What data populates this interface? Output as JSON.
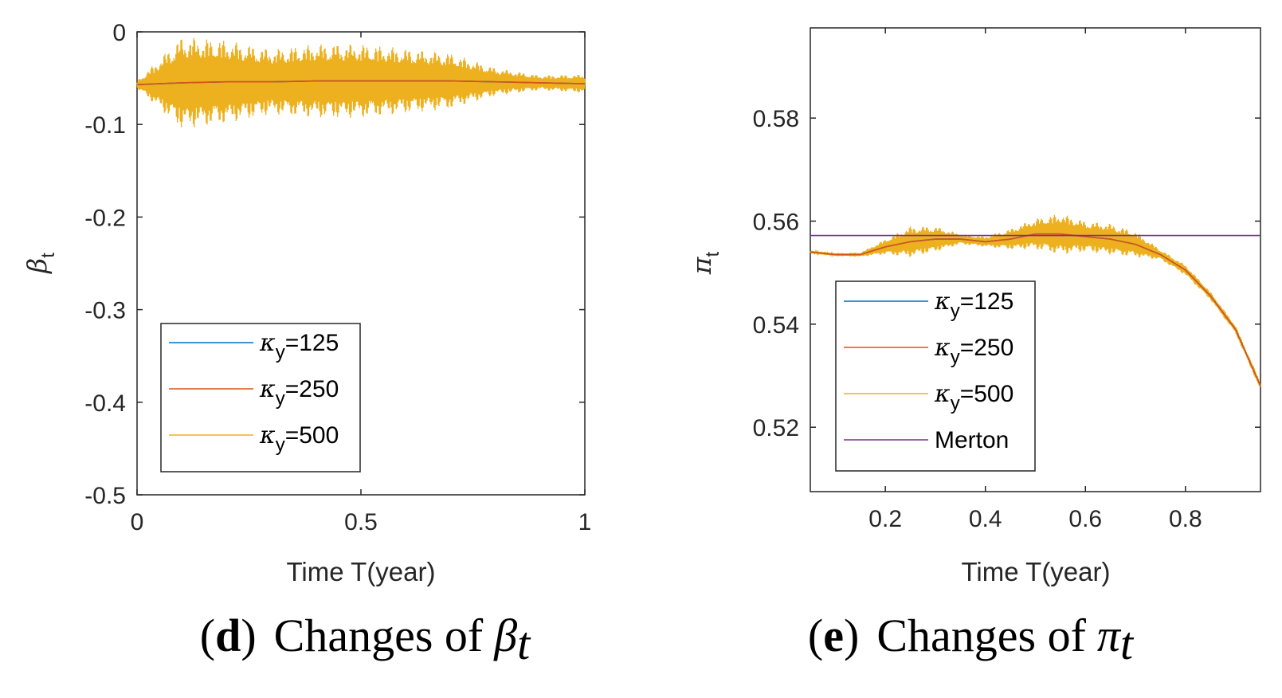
{
  "chart_data": [
    {
      "type": "line",
      "panel_letter": "d",
      "caption_text": "Changes of",
      "caption_symbol": "β",
      "caption_sub": "t",
      "ylabel_symbol": "β",
      "ylabel_sub": "t",
      "xlabel": "Time T(year)",
      "xlim": [
        0,
        1
      ],
      "ylim": [
        -0.5,
        0
      ],
      "xticks": [
        0,
        0.5,
        1
      ],
      "xtick_labels": [
        "0",
        "0.5",
        "1"
      ],
      "yticks": [
        0,
        -0.1,
        -0.2,
        -0.3,
        -0.4,
        -0.5
      ],
      "ytick_labels": [
        "0",
        "-0.1",
        "-0.2",
        "-0.3",
        "-0.4",
        "-0.5"
      ],
      "legend_location": "lower-left",
      "series": [
        {
          "name": "κy=125",
          "label_symbol": "κ",
          "label_sub": "y",
          "label_value": "=125",
          "color": "#0072BD",
          "x": [
            0,
            0.1,
            0.2,
            0.3,
            0.4,
            0.5,
            0.6,
            0.7,
            0.8,
            0.9,
            1.0
          ],
          "y": [
            -0.057,
            -0.055,
            -0.054,
            -0.054,
            -0.053,
            -0.053,
            -0.053,
            -0.053,
            -0.054,
            -0.055,
            -0.056
          ]
        },
        {
          "name": "κy=250",
          "label_symbol": "κ",
          "label_sub": "y",
          "label_value": "=250",
          "color": "#D95319",
          "x": [
            0,
            0.1,
            0.2,
            0.3,
            0.4,
            0.5,
            0.6,
            0.7,
            0.8,
            0.9,
            1.0
          ],
          "y": [
            -0.057,
            -0.055,
            -0.054,
            -0.054,
            -0.053,
            -0.053,
            -0.053,
            -0.053,
            -0.054,
            -0.055,
            -0.056
          ]
        },
        {
          "name": "κy=500",
          "label_symbol": "κ",
          "label_sub": "y",
          "label_value": "=500",
          "color": "#EDB120",
          "x": [
            0,
            0.1,
            0.2,
            0.3,
            0.4,
            0.5,
            0.6,
            0.7,
            0.8,
            0.9,
            1.0
          ],
          "y": [
            -0.057,
            -0.055,
            -0.054,
            -0.054,
            -0.053,
            -0.053,
            -0.053,
            -0.053,
            -0.054,
            -0.055,
            -0.056
          ],
          "oscillation_amplitude": [
            0.004,
            0.05,
            0.045,
            0.035,
            0.04,
            0.04,
            0.035,
            0.03,
            0.015,
            0.008,
            0.01
          ]
        }
      ]
    },
    {
      "type": "line",
      "panel_letter": "e",
      "caption_text": "Changes of",
      "caption_symbol": "π",
      "caption_sub": "t",
      "ylabel_symbol": "π",
      "ylabel_sub": "t",
      "xlabel": "Time T(year)",
      "xlim": [
        0.05,
        0.95
      ],
      "ylim": [
        0.5075,
        0.5975
      ],
      "xticks": [
        0.2,
        0.4,
        0.6,
        0.8
      ],
      "xtick_labels": [
        "0.2",
        "0.4",
        "0.6",
        "0.8"
      ],
      "yticks": [
        0.58,
        0.56,
        0.54,
        0.52
      ],
      "ytick_labels": [
        "0.58",
        "0.56",
        "0.54",
        "0.52"
      ],
      "legend_location": "lower-left",
      "series": [
        {
          "name": "κy=125",
          "label_symbol": "κ",
          "label_sub": "y",
          "label_value": "=125",
          "color": "#0072BD",
          "x": [
            0.05,
            0.1,
            0.15,
            0.2,
            0.25,
            0.3,
            0.35,
            0.4,
            0.45,
            0.5,
            0.55,
            0.6,
            0.65,
            0.7,
            0.75,
            0.8,
            0.85,
            0.9,
            0.95
          ],
          "y": [
            0.554,
            0.5535,
            0.5535,
            0.555,
            0.556,
            0.5565,
            0.5565,
            0.556,
            0.5565,
            0.5575,
            0.5575,
            0.557,
            0.5565,
            0.5555,
            0.5535,
            0.5505,
            0.5455,
            0.539,
            0.528
          ]
        },
        {
          "name": "κy=250",
          "label_symbol": "κ",
          "label_sub": "y",
          "label_value": "=250",
          "color": "#D95319",
          "x": [
            0.05,
            0.1,
            0.15,
            0.2,
            0.25,
            0.3,
            0.35,
            0.4,
            0.45,
            0.5,
            0.55,
            0.6,
            0.65,
            0.7,
            0.75,
            0.8,
            0.85,
            0.9,
            0.95
          ],
          "y": [
            0.554,
            0.5535,
            0.5535,
            0.555,
            0.556,
            0.5565,
            0.5565,
            0.556,
            0.5565,
            0.5575,
            0.5575,
            0.557,
            0.5565,
            0.5555,
            0.5535,
            0.5505,
            0.5455,
            0.539,
            0.528
          ]
        },
        {
          "name": "κy=500",
          "label_symbol": "κ",
          "label_sub": "y",
          "label_value": "=500",
          "color": "#EDB120",
          "x": [
            0.05,
            0.1,
            0.15,
            0.2,
            0.25,
            0.3,
            0.35,
            0.4,
            0.45,
            0.5,
            0.55,
            0.6,
            0.65,
            0.7,
            0.75,
            0.8,
            0.85,
            0.9,
            0.95
          ],
          "y": [
            0.554,
            0.5535,
            0.5535,
            0.555,
            0.556,
            0.5565,
            0.5565,
            0.556,
            0.5565,
            0.5575,
            0.5575,
            0.557,
            0.5565,
            0.5555,
            0.5535,
            0.5505,
            0.5455,
            0.539,
            0.528
          ],
          "oscillation_amplitude": [
            0.0003,
            0.0003,
            0.0004,
            0.0015,
            0.003,
            0.0025,
            0.001,
            0.001,
            0.002,
            0.003,
            0.004,
            0.003,
            0.003,
            0.0025,
            0.001,
            0.001,
            0.0008,
            0.0008,
            0.0008
          ]
        },
        {
          "name": "Merton",
          "label_value": "Merton",
          "color": "#7E2F8E",
          "x": [
            0.05,
            0.95
          ],
          "y": [
            0.5572,
            0.5572
          ]
        }
      ]
    }
  ]
}
